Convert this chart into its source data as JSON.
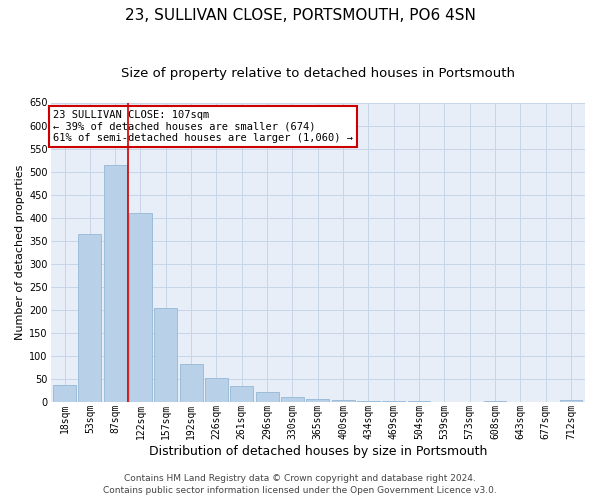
{
  "title": "23, SULLIVAN CLOSE, PORTSMOUTH, PO6 4SN",
  "subtitle": "Size of property relative to detached houses in Portsmouth",
  "xlabel": "Distribution of detached houses by size in Portsmouth",
  "ylabel": "Number of detached properties",
  "categories": [
    "18sqm",
    "53sqm",
    "87sqm",
    "122sqm",
    "157sqm",
    "192sqm",
    "226sqm",
    "261sqm",
    "296sqm",
    "330sqm",
    "365sqm",
    "400sqm",
    "434sqm",
    "469sqm",
    "504sqm",
    "539sqm",
    "573sqm",
    "608sqm",
    "643sqm",
    "677sqm",
    "712sqm"
  ],
  "values": [
    37,
    365,
    515,
    410,
    205,
    82,
    53,
    35,
    22,
    12,
    8,
    5,
    3,
    3,
    3,
    1,
    0,
    3,
    0,
    1,
    5
  ],
  "bar_color": "#b8d0e8",
  "bar_edge_color": "#8ab0d0",
  "vline_color": "#cc0000",
  "annotation_text": "23 SULLIVAN CLOSE: 107sqm\n← 39% of detached houses are smaller (674)\n61% of semi-detached houses are larger (1,060) →",
  "annotation_box_color": "#ffffff",
  "annotation_box_edge": "#cc0000",
  "ylim": [
    0,
    650
  ],
  "yticks": [
    0,
    50,
    100,
    150,
    200,
    250,
    300,
    350,
    400,
    450,
    500,
    550,
    600,
    650
  ],
  "grid_color": "#c8d4e8",
  "bg_color": "#e8eef8",
  "footer_line1": "Contains HM Land Registry data © Crown copyright and database right 2024.",
  "footer_line2": "Contains public sector information licensed under the Open Government Licence v3.0.",
  "title_fontsize": 11,
  "subtitle_fontsize": 9.5,
  "xlabel_fontsize": 9,
  "ylabel_fontsize": 8,
  "tick_fontsize": 7,
  "footer_fontsize": 6.5,
  "annotation_fontsize": 7.5
}
